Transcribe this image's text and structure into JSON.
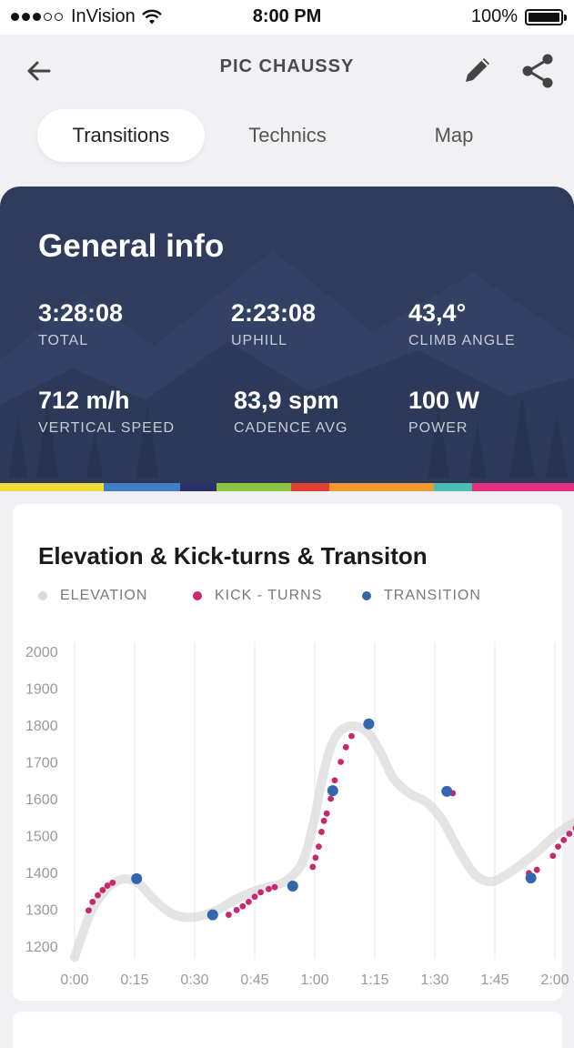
{
  "status_bar": {
    "carrier": "InVision",
    "time": "8:00 PM",
    "battery": "100%"
  },
  "header": {
    "title": "PIC CHAUSSY",
    "back_icon": "back-arrow-icon",
    "edit_icon": "pencil-icon",
    "share_icon": "share-icon"
  },
  "tabs": [
    {
      "label": "Transitions",
      "active": true
    },
    {
      "label": "Technics",
      "active": false
    },
    {
      "label": "Map",
      "active": false
    }
  ],
  "general_info": {
    "title": "General info",
    "stats": [
      {
        "value": "3:28:08",
        "label": "TOTAL"
      },
      {
        "value": "2:23:08",
        "label": "UPHILL"
      },
      {
        "value": "43,4°",
        "label": "CLIMB ANGLE"
      },
      {
        "value": "712 m/h",
        "label": "VERTICAL SPEED"
      },
      {
        "value": "83,9 spm",
        "label": "CADENCE AVG"
      },
      {
        "value": "100 W",
        "label": "POWER"
      }
    ],
    "strip_colors": [
      "#f1dc3d",
      "#3f7fc7",
      "#2b2f6a",
      "#8cc43f",
      "#e0402f",
      "#f29a2d",
      "#48c0b3",
      "#e0307d"
    ]
  },
  "colors": {
    "card_bg": "#2f3c5d",
    "elevation": "#d9d9d9",
    "kick_turns": "#c8286e",
    "transition": "#3267ad"
  },
  "chart_data": {
    "type": "line",
    "title": "Elevation & Kick-turns & Transiton",
    "legend": [
      "ELEVATION",
      "KICK - TURNS",
      "TRANSITION"
    ],
    "legend_placement": "top",
    "xlabel": "",
    "ylabel": "",
    "x_ticks": [
      "0:00",
      "0:15",
      "0:30",
      "0:45",
      "1:00",
      "1:15",
      "1:30",
      "1:45",
      "2:00"
    ],
    "y_ticks": [
      1200,
      1300,
      1400,
      1500,
      1600,
      1700,
      1800,
      1900,
      2000
    ],
    "xlim": [
      0,
      128
    ],
    "ylim": [
      1180,
      2000
    ],
    "grid": "vertical",
    "series": [
      {
        "name": "ELEVATION",
        "x": [
          0,
          4,
          8,
          12,
          16,
          20,
          24,
          28,
          32,
          36,
          40,
          44,
          48,
          52,
          56,
          58,
          60,
          62,
          64,
          66,
          68,
          70,
          72,
          74,
          76,
          78,
          80,
          84,
          88,
          92,
          96,
          100,
          104,
          108,
          112,
          116,
          120,
          124,
          128
        ],
        "y": [
          1170,
          1290,
          1355,
          1382,
          1370,
          1325,
          1290,
          1278,
          1283,
          1300,
          1325,
          1345,
          1360,
          1372,
          1410,
          1460,
          1550,
          1660,
          1740,
          1780,
          1795,
          1797,
          1790,
          1770,
          1735,
          1690,
          1650,
          1612,
          1590,
          1540,
          1460,
          1395,
          1375,
          1395,
          1425,
          1460,
          1500,
          1530,
          1550
        ]
      },
      {
        "name": "KICK - TURNS",
        "x": [
          3.5,
          4.5,
          5.8,
          7,
          8.2,
          9.5,
          38.5,
          40.5,
          42,
          43.5,
          45,
          46.5,
          48.5,
          50,
          59.5,
          60.2,
          61,
          61.7,
          62.3,
          63,
          64,
          65,
          66.5,
          67.8,
          69.2,
          94.5,
          113.5,
          115.5,
          119.5,
          120.8,
          122.2,
          123.6,
          125.2,
          126.3,
          127.5
        ],
        "y": [
          1297,
          1320,
          1338,
          1352,
          1364,
          1372,
          1285,
          1298,
          1308,
          1320,
          1334,
          1346,
          1355,
          1360,
          1415,
          1440,
          1470,
          1510,
          1540,
          1560,
          1600,
          1650,
          1700,
          1740,
          1770,
          1615,
          1398,
          1407,
          1445,
          1470,
          1488,
          1505,
          1520,
          1530,
          1540
        ]
      },
      {
        "name": "TRANSITION",
        "x": [
          15.5,
          34.5,
          54.5,
          64.5,
          73.5,
          93,
          114
        ],
        "y": [
          1383,
          1285,
          1363,
          1622,
          1803,
          1620,
          1385
        ]
      }
    ]
  }
}
